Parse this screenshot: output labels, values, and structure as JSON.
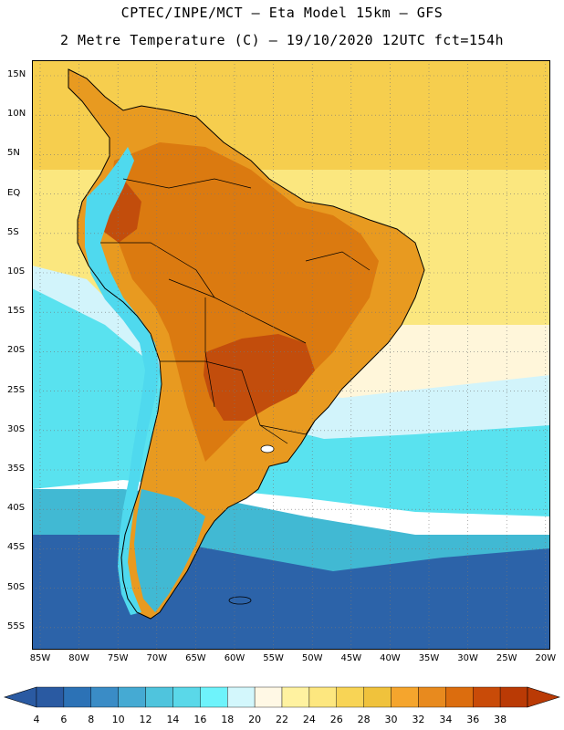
{
  "header": {
    "line1": "CPTEC/INPE/MCT –  Eta Model 15km – GFS",
    "line2": "2 Metre Temperature (C) – 19/10/2020 12UTC fct=154h"
  },
  "map": {
    "region": "South America",
    "lat_labels": [
      "15N",
      "10N",
      "5N",
      "EQ",
      "5S",
      "10S",
      "15S",
      "20S",
      "25S",
      "30S",
      "35S",
      "40S",
      "45S",
      "50S",
      "55S"
    ],
    "lon_labels": [
      "85W",
      "80W",
      "75W",
      "70W",
      "65W",
      "60W",
      "55W",
      "50W",
      "45W",
      "40W",
      "35W",
      "30W",
      "25W",
      "20W"
    ],
    "colors": {
      "ocean_north": "#f6ce4e",
      "ocean_tropical": "#fbe77f",
      "ocean_subtropical": "#fff6da",
      "ocean_cool": "#d2f4fb",
      "ocean_cold": "#59e2ef",
      "ocean_colder": "#41b9d3",
      "ocean_coldest": "#2c63a9",
      "land_hot": "#e89a20",
      "land_hotter": "#db7a10",
      "land_hottest": "#c24d0c",
      "andes": "#4fd9ee"
    }
  },
  "colorbar": {
    "labels": [
      "4",
      "6",
      "8",
      "10",
      "12",
      "14",
      "16",
      "18",
      "20",
      "22",
      "24",
      "26",
      "28",
      "30",
      "32",
      "34",
      "36",
      "38"
    ],
    "colors": [
      "#2a5aa2",
      "#2c72b6",
      "#3a8cc6",
      "#45aad3",
      "#4fc4dd",
      "#5ad8e9",
      "#6ef3fb",
      "#d3f7fc",
      "#fff8e5",
      "#fff2a0",
      "#fde77f",
      "#f8d455",
      "#f0c23c",
      "#f5a52d",
      "#e88a1e",
      "#dc6d0e",
      "#c94b08",
      "#ba3a05"
    ]
  }
}
